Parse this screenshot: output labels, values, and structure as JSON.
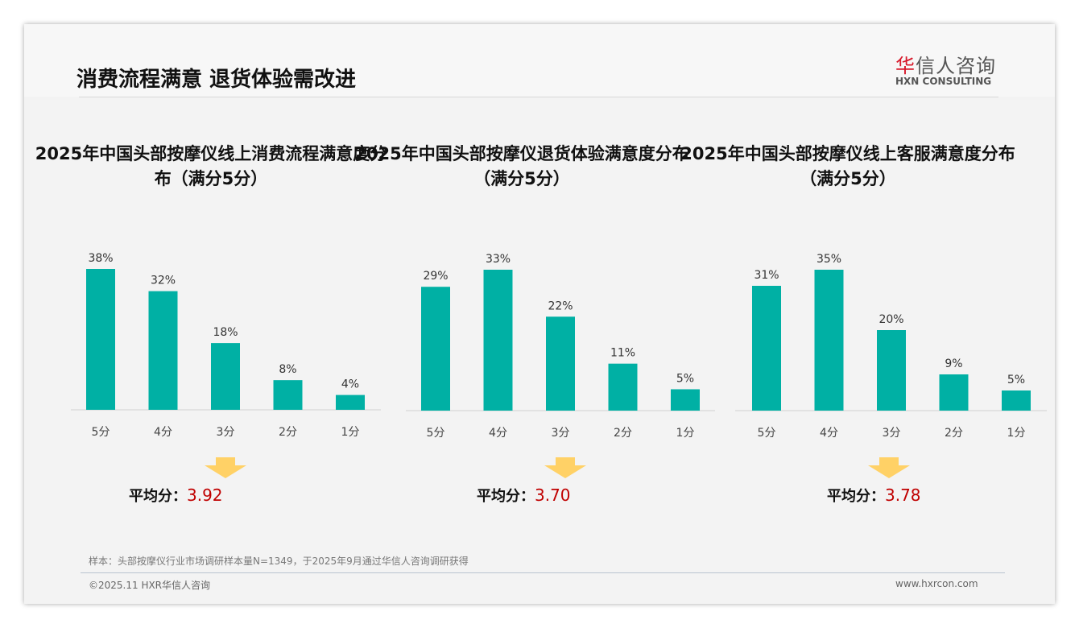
{
  "header": {
    "title": "消费流程满意 退货体验需改进",
    "logo_cn_red": "华",
    "logo_cn_rest": "信人咨询",
    "logo_en": "HXN CONSULTING"
  },
  "colors": {
    "bar": "#00b0a4",
    "accent": "#c00000",
    "arrow": "#ffd166"
  },
  "avg_label": "平均分：",
  "chart_data": [
    {
      "type": "bar",
      "title": "2025年中国头部按摩仪线上消费流程满意度分布（满分5分）",
      "categories": [
        "5分",
        "4分",
        "3分",
        "2分",
        "1分"
      ],
      "values": [
        38,
        32,
        18,
        8,
        4
      ],
      "labels": [
        "38%",
        "32%",
        "18%",
        "8%",
        "4%"
      ],
      "average": "3.92"
    },
    {
      "type": "bar",
      "title": "2025年中国头部按摩仪退货体验满意度分布（满分5分）",
      "categories": [
        "5分",
        "4分",
        "3分",
        "2分",
        "1分"
      ],
      "values": [
        29,
        33,
        22,
        11,
        5
      ],
      "labels": [
        "29%",
        "33%",
        "22%",
        "11%",
        "5%"
      ],
      "average": "3.70"
    },
    {
      "type": "bar",
      "title": "2025年中国头部按摩仪线上客服满意度分布（满分5分）",
      "categories": [
        "5分",
        "4分",
        "3分",
        "2分",
        "1分"
      ],
      "values": [
        31,
        35,
        20,
        9,
        5
      ],
      "labels": [
        "31%",
        "35%",
        "20%",
        "9%",
        "5%"
      ],
      "average": "3.78"
    }
  ],
  "footer": {
    "note": "样本：头部按摩仪行业市场调研样本量N=1349，于2025年9月通过华信人咨询调研获得",
    "copyright": "©2025.11 HXR华信人咨询",
    "url": "www.hxrcon.com"
  }
}
